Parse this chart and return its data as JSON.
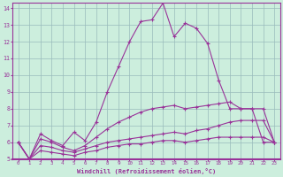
{
  "xlabel": "Windchill (Refroidissement éolien,°C)",
  "xlim": [
    -0.5,
    23.5
  ],
  "ylim": [
    5,
    14.3
  ],
  "xticks": [
    0,
    1,
    2,
    3,
    4,
    5,
    6,
    7,
    8,
    9,
    10,
    11,
    12,
    13,
    14,
    15,
    16,
    17,
    18,
    19,
    20,
    21,
    22,
    23
  ],
  "yticks": [
    5,
    6,
    7,
    8,
    9,
    10,
    11,
    12,
    13,
    14
  ],
  "background_color": "#cceedd",
  "line_color": "#993399",
  "grid_color": "#99bbbb",
  "line1_x": [
    0,
    1,
    2,
    3,
    4,
    5,
    6,
    7,
    8,
    9,
    10,
    11,
    12,
    13,
    14,
    15,
    16,
    17,
    18,
    19,
    20,
    21,
    22,
    23
  ],
  "line1_y": [
    6.0,
    5.0,
    6.5,
    6.1,
    5.8,
    6.6,
    6.1,
    7.2,
    9.0,
    10.5,
    12.0,
    13.2,
    13.3,
    14.3,
    12.3,
    13.1,
    12.8,
    11.9,
    9.7,
    8.0,
    8.0,
    8.0,
    6.0,
    6.0
  ],
  "line2_x": [
    0,
    1,
    2,
    3,
    4,
    5,
    6,
    7,
    8,
    9,
    10,
    11,
    12,
    13,
    14,
    15,
    16,
    17,
    18,
    19,
    20,
    21,
    22,
    23
  ],
  "line2_y": [
    6.0,
    5.0,
    6.2,
    6.0,
    5.7,
    5.5,
    5.8,
    6.3,
    6.8,
    7.2,
    7.5,
    7.8,
    8.0,
    8.1,
    8.2,
    8.0,
    8.1,
    8.2,
    8.3,
    8.4,
    8.0,
    8.0,
    8.0,
    6.0
  ],
  "line3_x": [
    0,
    1,
    2,
    3,
    4,
    5,
    6,
    7,
    8,
    9,
    10,
    11,
    12,
    13,
    14,
    15,
    16,
    17,
    18,
    19,
    20,
    21,
    22,
    23
  ],
  "line3_y": [
    6.0,
    5.0,
    5.8,
    5.7,
    5.5,
    5.4,
    5.6,
    5.8,
    6.0,
    6.1,
    6.2,
    6.3,
    6.4,
    6.5,
    6.6,
    6.5,
    6.7,
    6.8,
    7.0,
    7.2,
    7.3,
    7.3,
    7.3,
    6.0
  ],
  "line4_x": [
    0,
    1,
    2,
    3,
    4,
    5,
    6,
    7,
    8,
    9,
    10,
    11,
    12,
    13,
    14,
    15,
    16,
    17,
    18,
    19,
    20,
    21,
    22,
    23
  ],
  "line4_y": [
    6.0,
    5.0,
    5.5,
    5.4,
    5.3,
    5.2,
    5.4,
    5.5,
    5.7,
    5.8,
    5.9,
    5.9,
    6.0,
    6.1,
    6.1,
    6.0,
    6.1,
    6.2,
    6.3,
    6.3,
    6.3,
    6.3,
    6.3,
    6.0
  ]
}
